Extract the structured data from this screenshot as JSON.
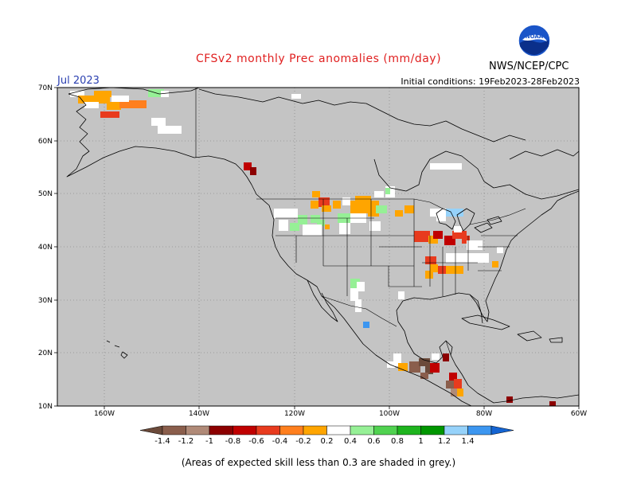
{
  "header": {
    "title": "CFSv2 monthly Prec anomalies (mm/day)",
    "month": "Jul 2023",
    "initial_conditions": "Initial conditions: 19Feb2023-28Feb2023",
    "agency": "NWS/NCEP/CPC",
    "logo_text": "NOAA"
  },
  "map": {
    "lon_ticks": [
      "160W",
      "140W",
      "120W",
      "100W",
      "80W",
      "60W"
    ],
    "lat_ticks": [
      "70N",
      "60N",
      "50N",
      "40N",
      "30N",
      "20N",
      "10N"
    ],
    "colors": {
      "background_grey": "#c4c4c4",
      "land_line": "#000000"
    }
  },
  "colorbar": {
    "labels": [
      "-1.4",
      "-1.2",
      "-1",
      "-0.8",
      "-0.6",
      "-0.4",
      "-0.2",
      "0.2",
      "0.4",
      "0.6",
      "0.8",
      "1",
      "1.2",
      "1.4"
    ],
    "colors": [
      "#6b4a3a",
      "#8a5e4c",
      "#b08a78",
      "#8c0000",
      "#c00000",
      "#e83b1e",
      "#ff7f1e",
      "#ffa500",
      "#ffffff",
      "#96f096",
      "#50d250",
      "#1eb41e",
      "#009600",
      "#96d2fa",
      "#3c96f0",
      "#1464d2"
    ]
  },
  "footer": {
    "note": "(Areas of expected skill less than 0.3 are shaded in grey.)"
  }
}
